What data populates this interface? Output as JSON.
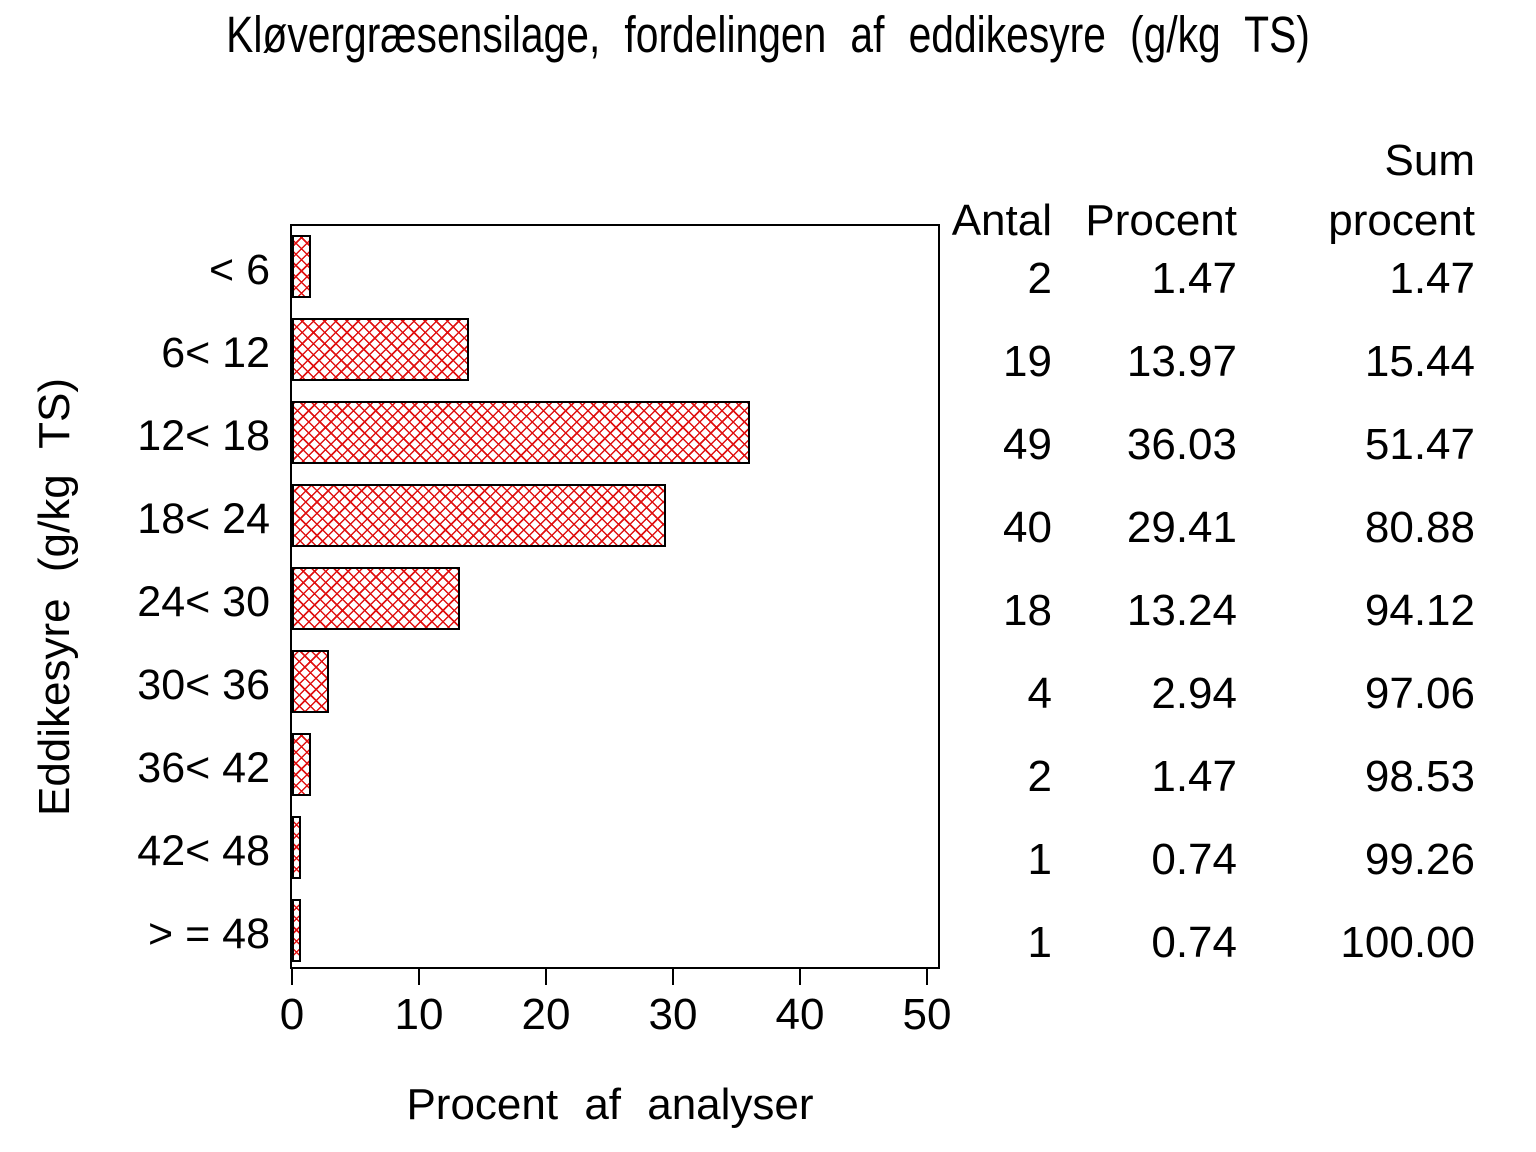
{
  "title": "Kløvergræsensilage, fordelingen af eddikesyre (g/kg TS)",
  "chart_data": {
    "type": "bar",
    "orientation": "horizontal",
    "title": "Kløvergræsensilage, fordelingen af eddikesyre (g/kg TS)",
    "xlabel": "Procent af analyser",
    "ylabel": "Eddikesyre (g/kg TS)",
    "categories": [
      "< 6",
      "6< 12",
      "12< 18",
      "18< 24",
      "24< 30",
      "30< 36",
      "36< 42",
      "42< 48",
      "> = 48"
    ],
    "values": [
      1.47,
      13.97,
      36.03,
      29.41,
      13.24,
      2.94,
      1.47,
      0.74,
      0.74
    ],
    "xlim": [
      0,
      50
    ],
    "xticks": [
      "0",
      "10",
      "20",
      "30",
      "40",
      "50"
    ],
    "grid": false,
    "legend": "none",
    "bar_style": "red diagonal crosshatch with black outline",
    "bar_hatch_color": "#e01010",
    "bar_outline_color": "#000000"
  },
  "table": {
    "headers": {
      "antal": "Antal",
      "procent": "Procent",
      "sum_line1": "Sum",
      "sum_line2": "procent"
    },
    "rows": [
      {
        "antal": "2",
        "procent": "1.47",
        "sum": "1.47"
      },
      {
        "antal": "19",
        "procent": "13.97",
        "sum": "15.44"
      },
      {
        "antal": "49",
        "procent": "36.03",
        "sum": "51.47"
      },
      {
        "antal": "40",
        "procent": "29.41",
        "sum": "80.88"
      },
      {
        "antal": "18",
        "procent": "13.24",
        "sum": "94.12"
      },
      {
        "antal": "4",
        "procent": "2.94",
        "sum": "97.06"
      },
      {
        "antal": "2",
        "procent": "1.47",
        "sum": "98.53"
      },
      {
        "antal": "1",
        "procent": "0.74",
        "sum": "99.26"
      },
      {
        "antal": "1",
        "procent": "0.74",
        "sum": "100.00"
      }
    ]
  }
}
